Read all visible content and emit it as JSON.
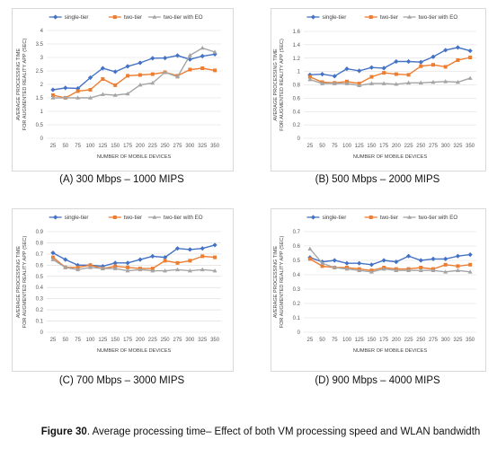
{
  "colors": {
    "single": "#4472C4",
    "two": "#ED7D31",
    "eo": "#A5A5A5",
    "grid": "#d9d9d9"
  },
  "chart_data": [
    {
      "type": "line",
      "caption": "(A) 300 Mbps – 1000 MIPS",
      "xlabel": "NUMBER OF MOBILE DEVICES",
      "ylabel_lines": [
        "AVERAGE PROCESSING TIME",
        "FOR AUGMENTED REALITY APP (SEC)"
      ],
      "categories": [
        "25",
        "50",
        "75",
        "100",
        "125",
        "150",
        "175",
        "200",
        "225",
        "250",
        "275",
        "300",
        "325",
        "350"
      ],
      "ylim": [
        0,
        4
      ],
      "yticks": [
        0,
        0.5,
        1,
        1.5,
        2,
        2.5,
        3,
        3.5,
        4
      ],
      "ytick_labels": [
        "0",
        "0.5",
        "1",
        "1.5",
        "2",
        "2.5",
        "3",
        "3.5",
        "4"
      ],
      "series": [
        {
          "name": "single-tier",
          "values": [
            1.8,
            1.87,
            1.85,
            2.25,
            2.6,
            2.47,
            2.67,
            2.8,
            2.97,
            2.98,
            3.07,
            2.93,
            3.05,
            3.12
          ]
        },
        {
          "name": "two-tier",
          "values": [
            1.6,
            1.5,
            1.75,
            1.8,
            2.2,
            1.97,
            2.32,
            2.35,
            2.38,
            2.45,
            2.32,
            2.55,
            2.6,
            2.52
          ]
        },
        {
          "name": "two-tier with EO",
          "values": [
            1.5,
            1.5,
            1.5,
            1.5,
            1.63,
            1.6,
            1.65,
            1.98,
            2.05,
            2.45,
            2.28,
            3.08,
            3.35,
            3.2
          ]
        }
      ]
    },
    {
      "type": "line",
      "caption": "(B) 500 Mbps – 2000 MIPS",
      "xlabel": "NUMBER OF MOBILE DEVICES",
      "ylabel_lines": [
        "AVERAGE PROCESSING TIME",
        "FOR AUGMENTED REALITY APP (SEC)"
      ],
      "categories": [
        "25",
        "50",
        "75",
        "100",
        "125",
        "150",
        "175",
        "200",
        "225",
        "250",
        "275",
        "300",
        "325",
        "350"
      ],
      "ylim": [
        0,
        1.6
      ],
      "yticks": [
        0,
        0.2,
        0.4,
        0.6,
        0.8,
        1,
        1.2,
        1.4,
        1.6
      ],
      "ytick_labels": [
        "0",
        "0.2",
        "0.4",
        "0.6",
        "0.8",
        "1",
        "1.2",
        "1.4",
        "1.6"
      ],
      "series": [
        {
          "name": "single-tier",
          "values": [
            0.95,
            0.96,
            0.93,
            1.04,
            1.01,
            1.06,
            1.05,
            1.15,
            1.15,
            1.14,
            1.22,
            1.32,
            1.36,
            1.31
          ]
        },
        {
          "name": "two-tier",
          "values": [
            0.92,
            0.84,
            0.83,
            0.85,
            0.82,
            0.92,
            0.98,
            0.96,
            0.95,
            1.08,
            1.1,
            1.07,
            1.17,
            1.21
          ]
        },
        {
          "name": "two-tier with EO",
          "values": [
            0.88,
            0.82,
            0.82,
            0.82,
            0.79,
            0.82,
            0.82,
            0.81,
            0.83,
            0.83,
            0.84,
            0.85,
            0.84,
            0.9
          ]
        }
      ]
    },
    {
      "type": "line",
      "caption": "(C) 700 Mbps – 3000 MIPS",
      "xlabel": "NUMBER OF MOBILE DEVICES",
      "ylabel_lines": [
        "AVERAGE PROCESSING TIME",
        "FOR AUGMENTED REALITY APP (SEC)"
      ],
      "categories": [
        "25",
        "50",
        "75",
        "100",
        "125",
        "150",
        "175",
        "200",
        "225",
        "250",
        "275",
        "300",
        "325",
        "350"
      ],
      "ylim": [
        0,
        0.9
      ],
      "yticks": [
        0,
        0.1,
        0.2,
        0.3,
        0.4,
        0.5,
        0.6,
        0.7,
        0.8,
        0.9
      ],
      "ytick_labels": [
        "0",
        "0.1",
        "0.2",
        "0.3",
        "0.4",
        "0.5",
        "0.6",
        "0.7",
        "0.8",
        "0.9"
      ],
      "series": [
        {
          "name": "single-tier",
          "values": [
            0.71,
            0.65,
            0.6,
            0.6,
            0.59,
            0.62,
            0.62,
            0.65,
            0.68,
            0.67,
            0.75,
            0.74,
            0.75,
            0.78
          ]
        },
        {
          "name": "two-tier",
          "values": [
            0.67,
            0.58,
            0.58,
            0.6,
            0.57,
            0.59,
            0.58,
            0.57,
            0.57,
            0.64,
            0.62,
            0.64,
            0.68,
            0.67
          ]
        },
        {
          "name": "two-tier with EO",
          "values": [
            0.65,
            0.58,
            0.56,
            0.58,
            0.57,
            0.57,
            0.55,
            0.56,
            0.55,
            0.55,
            0.56,
            0.55,
            0.56,
            0.55
          ]
        }
      ]
    },
    {
      "type": "line",
      "caption": "(D) 900 Mbps – 4000 MIPS",
      "xlabel": "NUMBER OF MOBILE DEVICES",
      "ylabel_lines": [
        "AVERAGE PROCESSING TIME",
        "FOR AUGMENTED REALITY APP (SEC)"
      ],
      "categories": [
        "25",
        "50",
        "75",
        "100",
        "125",
        "150",
        "175",
        "200",
        "225",
        "250",
        "275",
        "300",
        "325",
        "350"
      ],
      "ylim": [
        0,
        0.7
      ],
      "yticks": [
        0,
        0.1,
        0.2,
        0.3,
        0.4,
        0.5,
        0.6,
        0.7
      ],
      "ytick_labels": [
        "0",
        "0.1",
        "0.2",
        "0.3",
        "0.4",
        "0.5",
        "0.6",
        "0.7"
      ],
      "series": [
        {
          "name": "single-tier",
          "values": [
            0.52,
            0.49,
            0.5,
            0.48,
            0.48,
            0.47,
            0.5,
            0.49,
            0.53,
            0.5,
            0.51,
            0.51,
            0.53,
            0.54
          ]
        },
        {
          "name": "two-tier",
          "values": [
            0.51,
            0.46,
            0.45,
            0.45,
            0.44,
            0.43,
            0.45,
            0.44,
            0.44,
            0.45,
            0.44,
            0.47,
            0.46,
            0.47
          ]
        },
        {
          "name": "two-tier with EO",
          "values": [
            0.58,
            0.48,
            0.45,
            0.44,
            0.43,
            0.42,
            0.44,
            0.43,
            0.43,
            0.43,
            0.43,
            0.42,
            0.43,
            0.42
          ]
        }
      ]
    }
  ],
  "figure_caption": {
    "label": "Figure 30",
    "text": ". Average processing time– Effect of both VM processing speed and WLAN bandwidth"
  }
}
